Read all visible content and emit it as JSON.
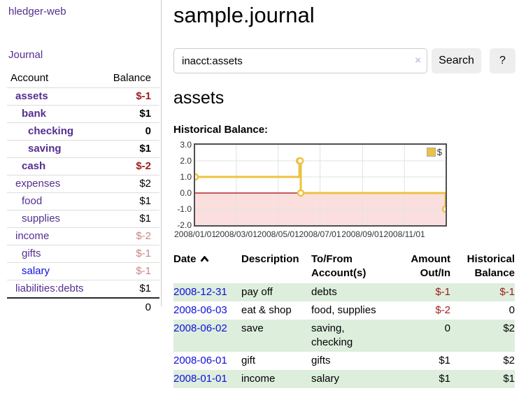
{
  "app": {
    "title": "hledger-web",
    "nav_journal": "Journal"
  },
  "sidebar": {
    "accounts_header": {
      "account": "Account",
      "balance": "Balance"
    },
    "accounts": [
      {
        "name": "assets",
        "balance": "$-1",
        "level": "l1",
        "bold": true,
        "negative": true,
        "dim": false,
        "blue": false
      },
      {
        "name": "bank",
        "balance": "$1",
        "level": "l2",
        "bold": true,
        "negative": false,
        "dim": false,
        "blue": false
      },
      {
        "name": "checking",
        "balance": "0",
        "level": "l3",
        "bold": true,
        "negative": false,
        "dim": false,
        "blue": false
      },
      {
        "name": "saving",
        "balance": "$1",
        "level": "l3",
        "bold": true,
        "negative": false,
        "dim": false,
        "blue": false
      },
      {
        "name": "cash",
        "balance": "$-2",
        "level": "l2",
        "bold": true,
        "negative": true,
        "dim": false,
        "blue": false
      },
      {
        "name": "expenses",
        "balance": "$2",
        "level": "l1",
        "bold": false,
        "negative": false,
        "dim": false,
        "blue": false
      },
      {
        "name": "food",
        "balance": "$1",
        "level": "l2",
        "bold": false,
        "negative": false,
        "dim": false,
        "blue": false
      },
      {
        "name": "supplies",
        "balance": "$1",
        "level": "l2",
        "bold": false,
        "negative": false,
        "dim": false,
        "blue": false
      },
      {
        "name": "income",
        "balance": "$-2",
        "level": "l1",
        "bold": false,
        "negative": true,
        "dim": true,
        "blue": false
      },
      {
        "name": "gifts",
        "balance": "$-1",
        "level": "l2",
        "bold": false,
        "negative": true,
        "dim": true,
        "blue": false
      },
      {
        "name": "salary",
        "balance": "$-1",
        "level": "l2",
        "bold": false,
        "negative": true,
        "dim": true,
        "blue": true
      },
      {
        "name": "liabilities:debts",
        "balance": "$1",
        "level": "l1",
        "bold": false,
        "negative": false,
        "dim": false,
        "blue": false
      }
    ],
    "total": "0"
  },
  "header": {
    "journal_title": "sample.journal"
  },
  "search": {
    "value": "inacct:assets",
    "clear_icon": "×",
    "button_label": "Search",
    "help_label": "?"
  },
  "main": {
    "account_title": "assets",
    "chart_label": "Historical Balance:"
  },
  "chart_data": {
    "type": "line",
    "step": true,
    "title": "Historical Balance",
    "series": [
      {
        "name": "$",
        "color": "#edc240",
        "points": [
          [
            "2008-01-01",
            1
          ],
          [
            "2008-06-01",
            2
          ],
          [
            "2008-06-02",
            2
          ],
          [
            "2008-06-03",
            0
          ],
          [
            "2008-12-31",
            -1
          ]
        ]
      }
    ],
    "xlim": [
      "2008-01-01",
      "2008-12-31"
    ],
    "ylim": [
      -2,
      3
    ],
    "x_ticks": [
      "2008/01/01",
      "2008/03/01",
      "2008/05/01",
      "2008/07/01",
      "2008/09/01",
      "2008/11/01"
    ],
    "y_ticks": [
      "3.0",
      "2.0",
      "1.0",
      "0.0",
      "-1.0",
      "-2.0"
    ],
    "legend": "$",
    "legend_position": "top-right",
    "grid": true,
    "negative_region_color": "#fbdfdf",
    "zero_line_color": "#a00000",
    "grid_color": "#e2e2e2",
    "point_fill": "#ffffff"
  },
  "register": {
    "columns": {
      "date": "Date",
      "description": "Description",
      "tofrom": "To/From Account(s)",
      "amount": "Amount Out/In",
      "balance": "Historical Balance"
    },
    "rows": [
      {
        "date": "2008-12-31",
        "description": "pay off",
        "accounts": "debts",
        "amount": "$-1",
        "amount_negative": true,
        "balance": "$-1",
        "balance_negative": true
      },
      {
        "date": "2008-06-03",
        "description": "eat & shop",
        "accounts": "food, supplies",
        "amount": "$-2",
        "amount_negative": true,
        "balance": "0",
        "balance_negative": false
      },
      {
        "date": "2008-06-02",
        "description": "save",
        "accounts": "saving, checking",
        "amount": "0",
        "amount_negative": false,
        "balance": "$2",
        "balance_negative": false
      },
      {
        "date": "2008-06-01",
        "description": "gift",
        "accounts": "gifts",
        "amount": "$1",
        "amount_negative": false,
        "balance": "$2",
        "balance_negative": false
      },
      {
        "date": "2008-01-01",
        "description": "income",
        "accounts": "salary",
        "amount": "$1",
        "amount_negative": false,
        "balance": "$1",
        "balance_negative": false
      }
    ]
  },
  "colors": {
    "link_purple": "#552e90",
    "link_blue": "#0f0fdd",
    "negative_red": "#9e1b1b",
    "negative_dim": "#c98585",
    "row_green": "#ddeedd",
    "chart_gold": "#edc240"
  }
}
